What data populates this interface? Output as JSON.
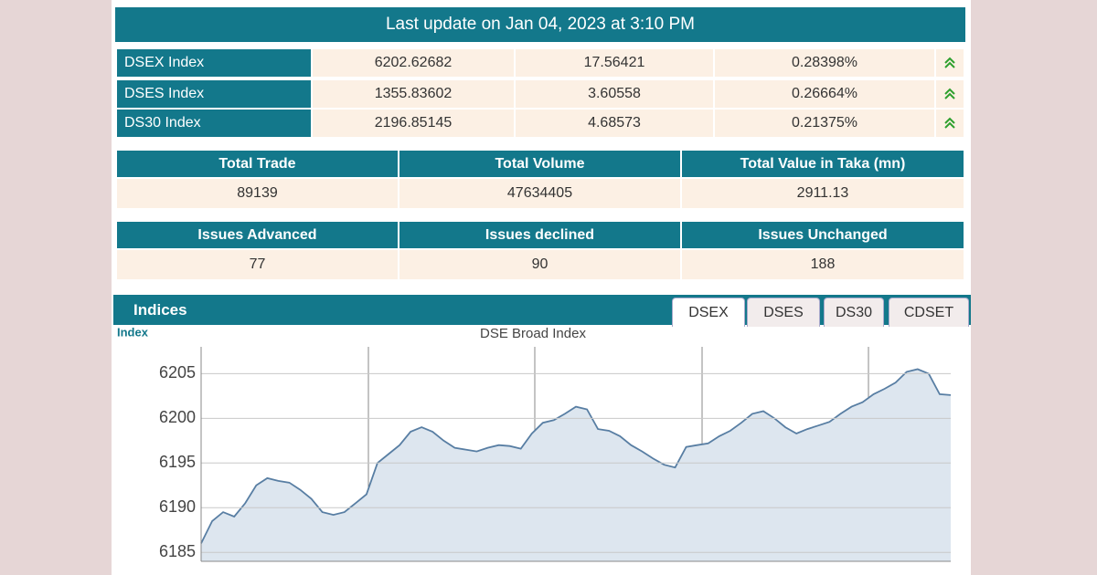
{
  "header": {
    "title": "Last update on Jan 04, 2023 at 3:10 PM"
  },
  "indices_table": {
    "rows": [
      [
        "DSEX Index",
        "6202.62682",
        "17.56421",
        "0.28398%"
      ],
      [
        "DSES Index",
        "1355.83602",
        "3.60558",
        "0.26664%"
      ],
      [
        "DS30 Index",
        "2196.85145",
        "4.68573",
        "0.21375%"
      ]
    ]
  },
  "market_table": {
    "headers": [
      "Total Trade",
      "Total Volume",
      "Total Value in Taka (mn)"
    ],
    "values": [
      "89139",
      "47634405",
      "2911.13"
    ]
  },
  "issues_table": {
    "headers": [
      "Issues Advanced",
      "Issues declined",
      "Issues Unchanged"
    ],
    "values": [
      "77",
      "90",
      "188"
    ]
  },
  "indices_panel": {
    "title": "Indices",
    "tabs": [
      "DSEX",
      "DSES",
      "DS30",
      "CDSET"
    ]
  },
  "chart_data": {
    "type": "line",
    "title": "DSE Broad Index",
    "y_label": "Index",
    "color": "#587ea3",
    "fill": "#dde6ef",
    "ylim": [
      6184,
      6208
    ],
    "yticks": [
      6185,
      6190,
      6195,
      6200,
      6205
    ],
    "grid": true,
    "values": [
      6186,
      6188.5,
      6189.5,
      6189,
      6190.5,
      6192.5,
      6193.3,
      6193,
      6192.8,
      6192,
      6191,
      6189.5,
      6189.2,
      6189.5,
      6190.5,
      6191.5,
      6195,
      6196,
      6197,
      6198.5,
      6199,
      6198.5,
      6197.5,
      6196.7,
      6196.5,
      6196.3,
      6196.7,
      6197,
      6196.9,
      6196.6,
      6198.3,
      6199.5,
      6199.8,
      6200.5,
      6201.3,
      6201,
      6198.8,
      6198.6,
      6198,
      6197,
      6196.3,
      6195.5,
      6194.8,
      6194.5,
      6196.8,
      6197,
      6197.2,
      6198,
      6198.6,
      6199.5,
      6200.5,
      6200.8,
      6200,
      6199,
      6198.3,
      6198.8,
      6199.2,
      6199.6,
      6200.5,
      6201.3,
      6201.8,
      6202.7,
      6203.3,
      6204,
      6205.2,
      6205.5,
      6205,
      6202.7,
      6202.6
    ]
  }
}
